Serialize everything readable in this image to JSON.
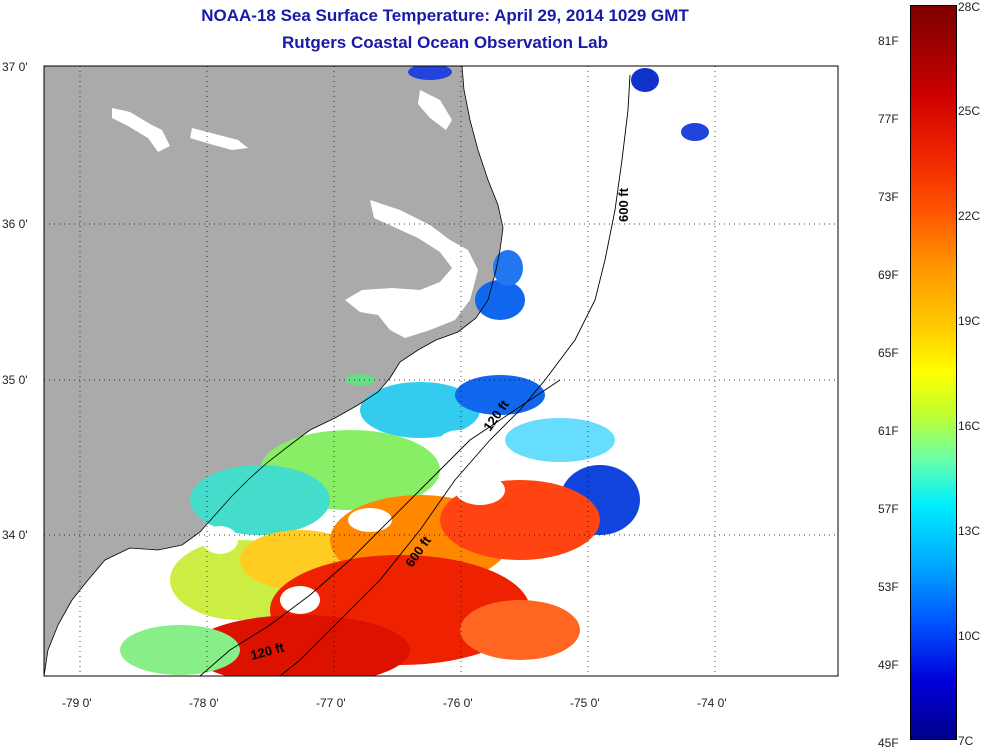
{
  "title": {
    "line1": "NOAA-18 Sea Surface Temperature:  April 29, 2014 1029 GMT",
    "line2": "Rutgers Coastal Ocean Observation Lab"
  },
  "map": {
    "lat_labels": [
      "37 0'",
      "36 0'",
      "35 0'",
      "34 0'"
    ],
    "lon_labels": [
      "-79 0'",
      "-78 0'",
      "-77 0'",
      "-76 0'",
      "-75 0'",
      "-74 0'"
    ],
    "contour_labels": [
      "600 ft",
      "120 ft",
      "600 ft",
      "120 ft"
    ],
    "land_color": "#aaaaaa",
    "ocean_no_data_color": "#ffffff"
  },
  "colorbar": {
    "fahrenheit_labels": [
      "81F",
      "77F",
      "73F",
      "69F",
      "65F",
      "61F",
      "57F",
      "53F",
      "49F",
      "45F"
    ],
    "celsius_labels": [
      "28C",
      "25C",
      "22C",
      "19C",
      "16C",
      "13C",
      "10C",
      "7C"
    ],
    "min_f": 45,
    "max_f": 82.4,
    "min_c": 7,
    "max_c": 28
  }
}
